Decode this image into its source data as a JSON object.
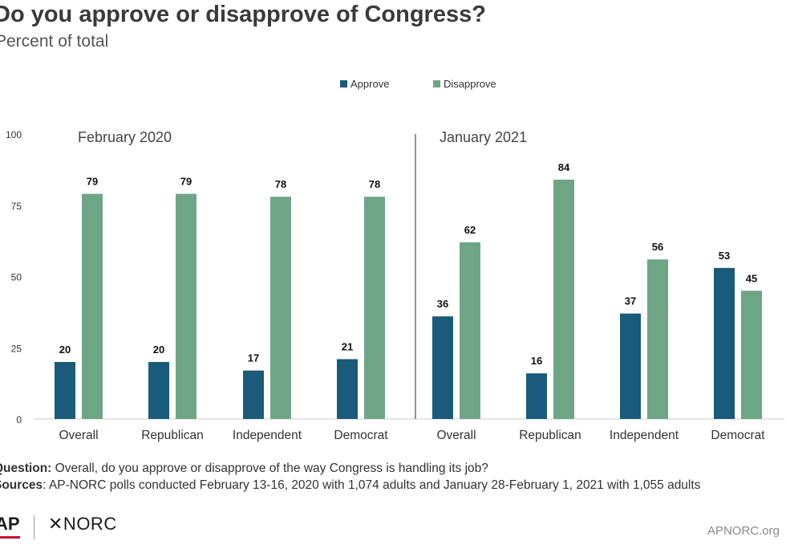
{
  "header": {
    "title": "Do you approve or disapprove of Congress?",
    "subtitle": "Percent of total"
  },
  "chart_data": {
    "type": "bar",
    "title": "Do you approve or disapprove of Congress?",
    "ylabel": "Percent of total",
    "ylim": [
      0,
      100
    ],
    "yticks": [
      0,
      25,
      50,
      75,
      100
    ],
    "legend": {
      "placement": "top-center",
      "entries": [
        "Approve",
        "Disapprove"
      ]
    },
    "colors": {
      "Approve": "#1a5a7a",
      "Disapprove": "#6fa587"
    },
    "panels": [
      {
        "label": "February 2020",
        "categories": [
          "Overall",
          "Republican",
          "Independent",
          "Democrat"
        ],
        "series": [
          {
            "name": "Approve",
            "values": [
              20,
              20,
              17,
              21
            ]
          },
          {
            "name": "Disapprove",
            "values": [
              79,
              79,
              78,
              78
            ]
          }
        ]
      },
      {
        "label": "January 2021",
        "categories": [
          "Overall",
          "Republican",
          "Independent",
          "Democrat"
        ],
        "series": [
          {
            "name": "Approve",
            "values": [
              36,
              16,
              37,
              53
            ]
          },
          {
            "name": "Disapprove",
            "values": [
              62,
              84,
              56,
              45
            ]
          }
        ]
      }
    ]
  },
  "footer": {
    "question_label": "Question:",
    "question_text": " Overall, do you approve or disapprove of the way Congress is handling its job?",
    "sources_label": "Sources",
    "sources_text": ": AP-NORC polls conducted February 13-16, 2020 with 1,074 adults and January 28-February 1, 2021 with 1,055 adults",
    "logo_ap": "AP",
    "logo_norc": "✕NORC",
    "url": "APNORC.org"
  }
}
